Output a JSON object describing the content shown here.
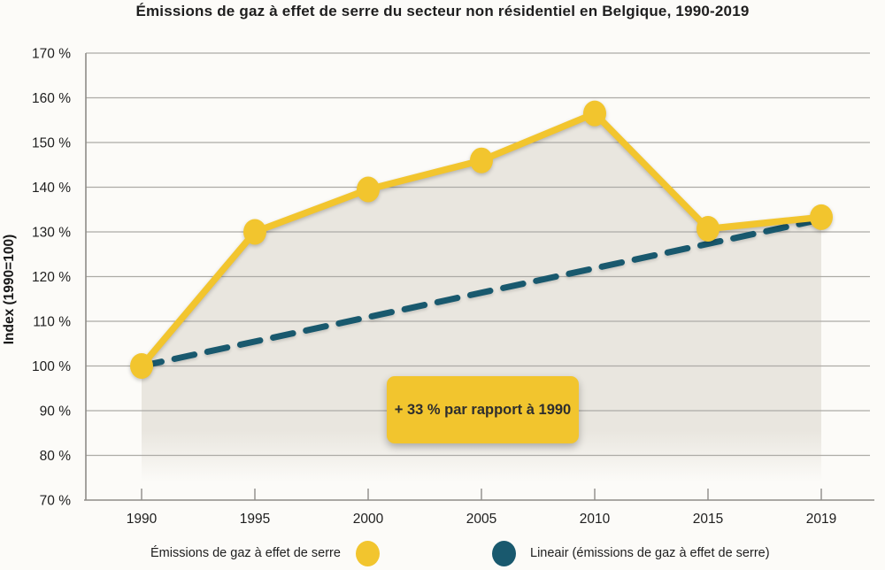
{
  "title": "Émissions de gaz à effet de serre du secteur non résidentiel en Belgique, 1990-2019",
  "chart_data": {
    "type": "line",
    "title": "Émissions de gaz à effet de serre du secteur non résidentiel en Belgique, 1990-2019",
    "ylabel": "Index (1990=100)",
    "xlabel": "",
    "categories": [
      "1990",
      "1995",
      "2000",
      "2005",
      "2010",
      "2015",
      "2019"
    ],
    "ylim": [
      70,
      170
    ],
    "ytick_step": 10,
    "ytick_suffix": " %",
    "yticks": [
      "70 %",
      "80 %",
      "90 %",
      "100 %",
      "110 %",
      "120 %",
      "130 %",
      "140 %",
      "150 %",
      "160 %",
      "170 %"
    ],
    "grid": true,
    "legend_position": "bottom",
    "series": [
      {
        "name": "Émissions de gaz à effet de serre",
        "type": "line",
        "color": "#F2C52E",
        "marker": "circle",
        "values": [
          100,
          130,
          139.5,
          146,
          156.5,
          130.7,
          133.3
        ],
        "area_color": "#E9E6DF"
      },
      {
        "name": "Lineair (émissions de gaz à effet de serre)",
        "type": "linear_trend",
        "style": "dashed",
        "color": "#19596E",
        "start_value": 100,
        "end_value": 132.8
      }
    ],
    "annotation": {
      "text": "+ 33 % par rapport à 1990",
      "bg_color": "#F2C52E",
      "text_color": "#2E2E2E"
    }
  },
  "legend": {
    "items": [
      {
        "label": "Émissions de gaz à effet de serre",
        "color": "#F2C52E"
      },
      {
        "label": "Lineair (émissions de gaz à effet de serre)",
        "color": "#19596E"
      }
    ]
  },
  "page": {
    "background": "#FCFBF8",
    "grid_color": "#ADABA6",
    "axis_color": "#8E8C88",
    "text_color": "#1E1E1E"
  }
}
